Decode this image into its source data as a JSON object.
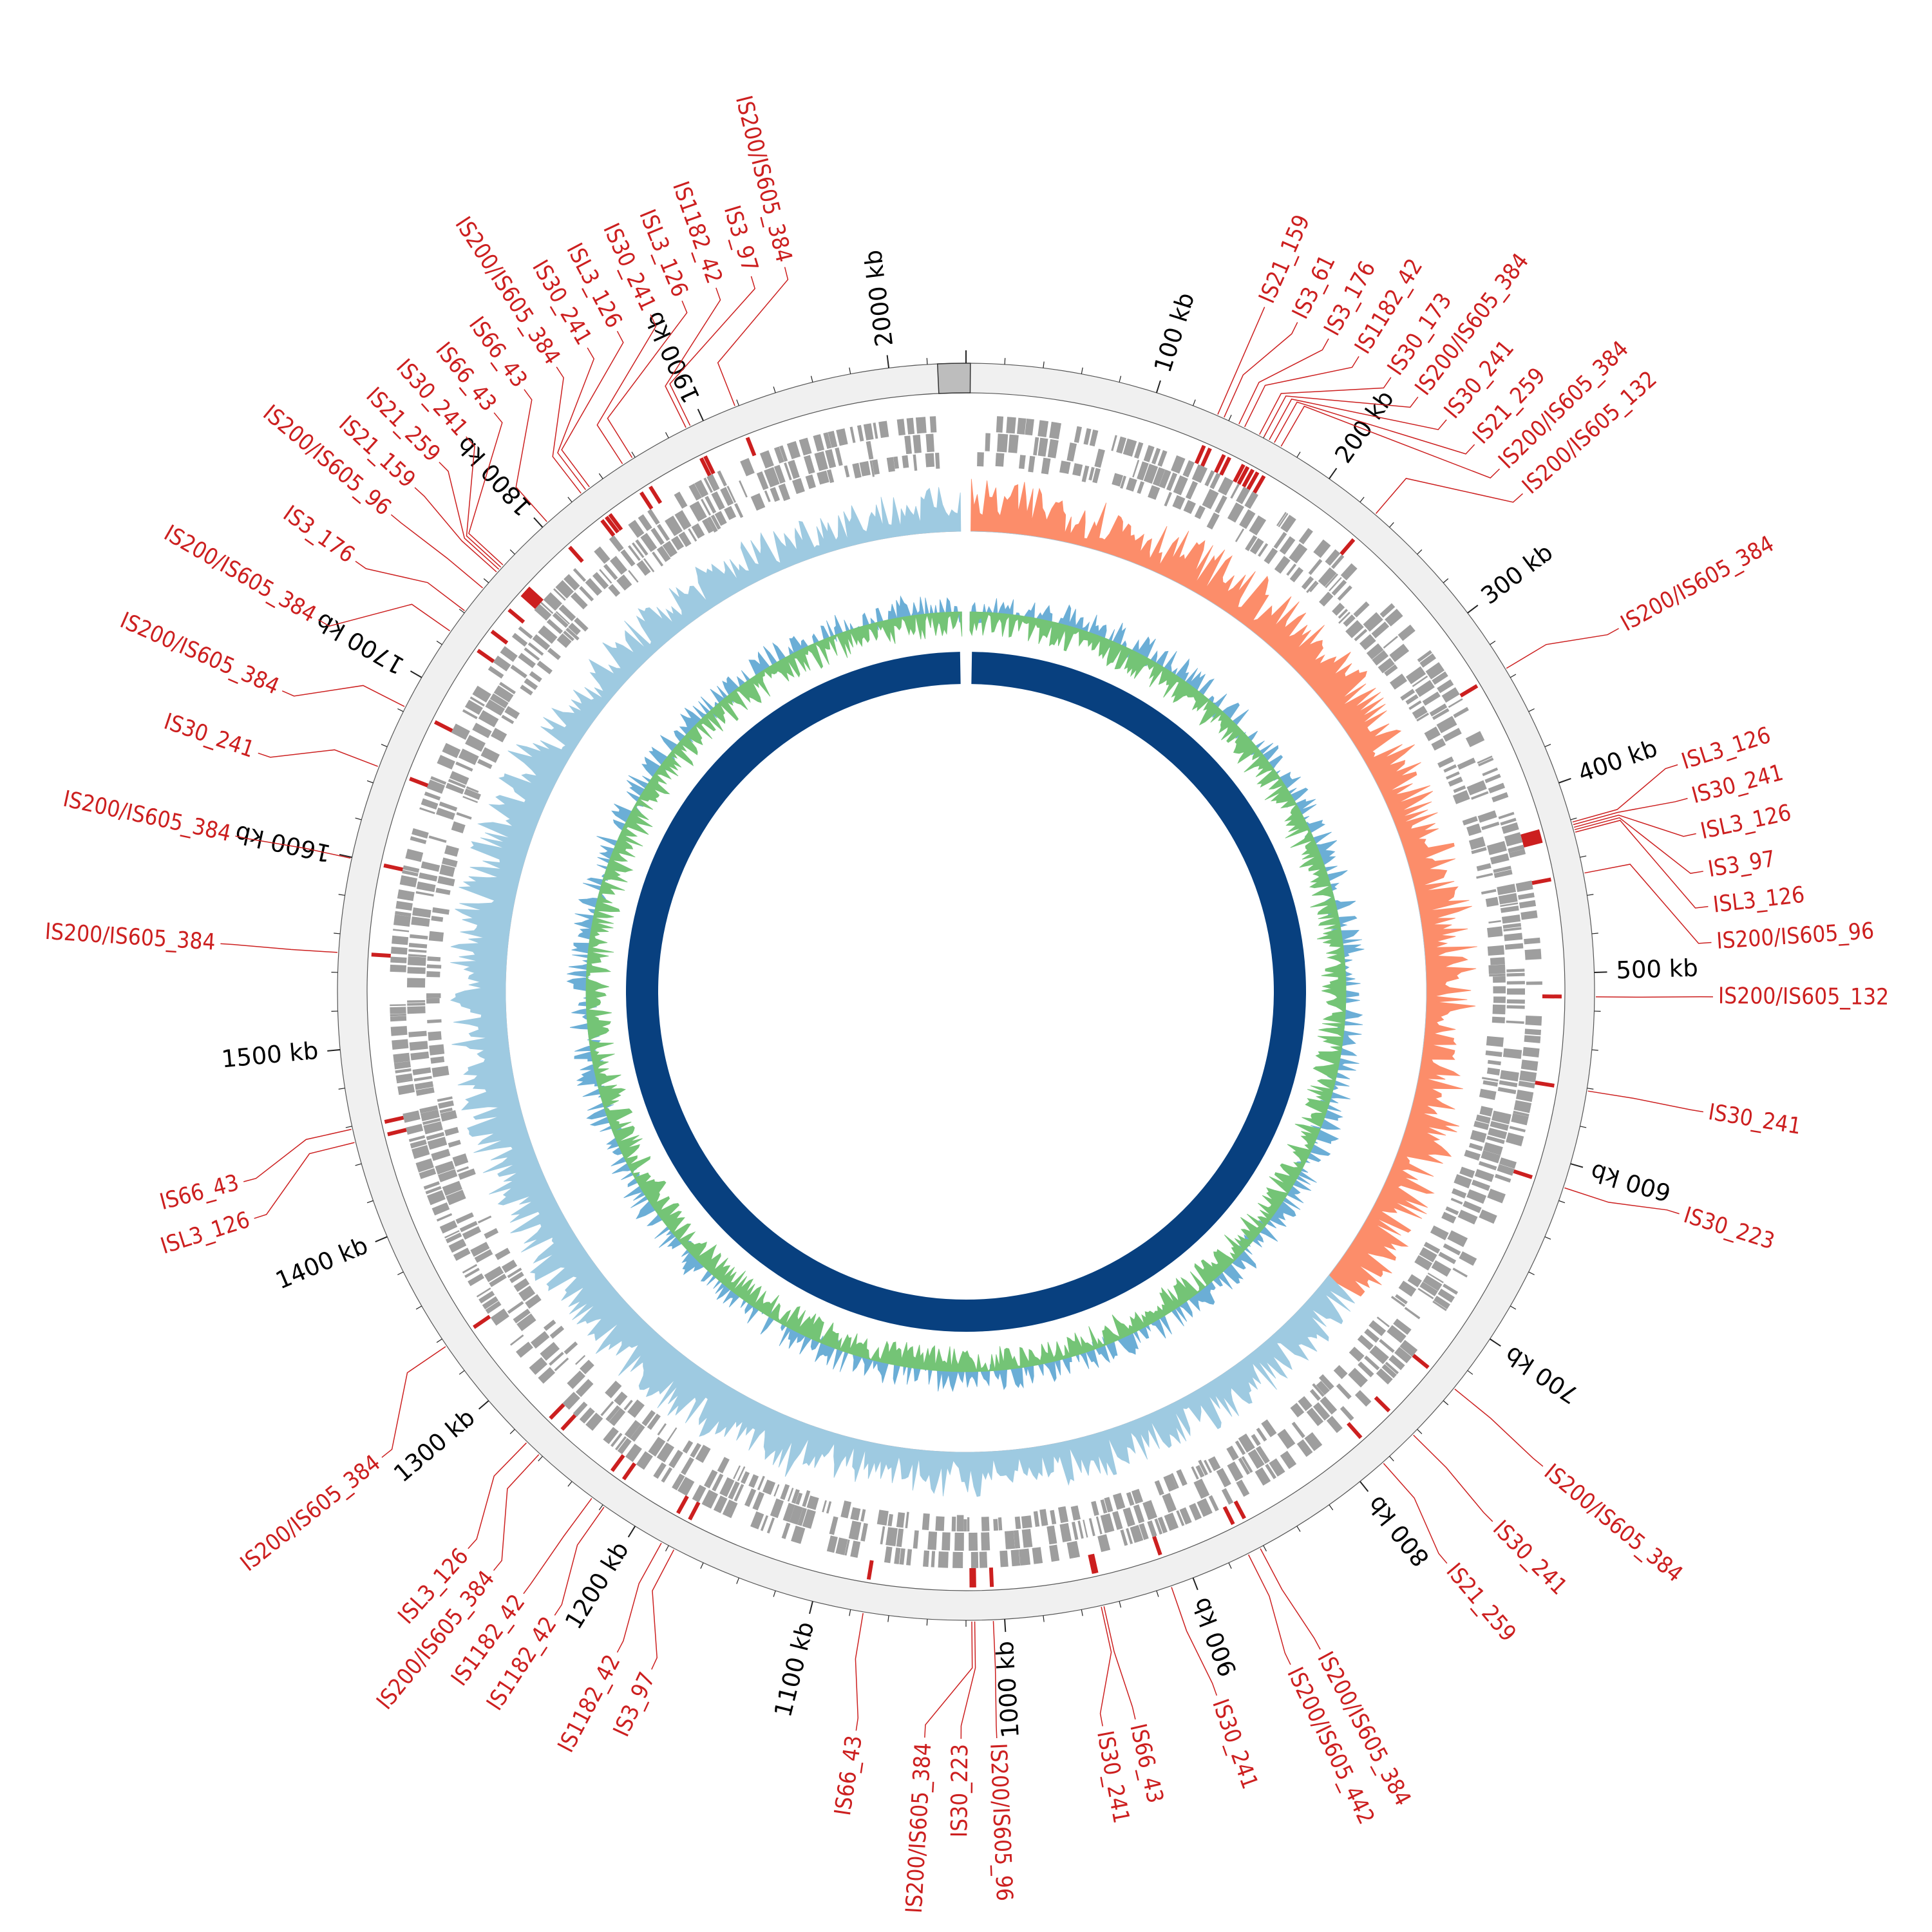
{
  "genome_size_kb": 2040,
  "tick_labels": [
    "100 kb",
    "200 kb",
    "300 kb",
    "400 kb",
    "500 kb",
    "600 kb",
    "700 kb",
    "800 kb",
    "900 kb",
    "1000 kb",
    "1100 kb",
    "1200 kb",
    "1300 kb",
    "1400 kb",
    "1500 kb",
    "1600 kb",
    "1700 kb",
    "1800 kb",
    "1900 kb",
    "2000 kb"
  ],
  "colors": {
    "label_red": "#cc1f1f",
    "outer_ring": "#f0f0f0",
    "origin_block": "#bdbdbd",
    "gene_gray": "#9e9e9e",
    "gc_skew_positive": "#fc8d6a",
    "gc_skew_negative": "#9ecae1",
    "gc_content_above": "#6baed6",
    "gc_content_below": "#74c476",
    "inner_ring": "#08407f"
  },
  "is_elements": [
    {
      "name": "IS21_159",
      "kb": 133.5
    },
    {
      "name": "IS3_61",
      "kb": 137.1
    },
    {
      "name": "IS3_176",
      "kb": 145.5
    },
    {
      "name": "IS1182_42",
      "kb": 148.8
    },
    {
      "name": "IS30_173",
      "kb": 157.4
    },
    {
      "name": "IS200/IS605_384",
      "kb": 160.0
    },
    {
      "name": "IS30_241",
      "kb": 163.1
    },
    {
      "name": "IS21_259",
      "kb": 166.1
    },
    {
      "name": "IS200/IS605_384",
      "kb": 170.1
    },
    {
      "name": "IS200/IS605_132",
      "kb": 230.1
    },
    {
      "name": "IS200/IS605_384",
      "kb": 334.9
    },
    {
      "name": "ISL3_126",
      "kb": 421.4
    },
    {
      "name": "IS30_241",
      "kb": 422.8
    },
    {
      "name": "ISL3_126",
      "kb": 424.2
    },
    {
      "name": "IS3_97",
      "kb": 425.5
    },
    {
      "name": "ISL3_126",
      "kb": 426.8
    },
    {
      "name": "IS200/IS605_96",
      "kb": 448.4
    },
    {
      "name": "IS200/IS605_132",
      "kb": 512.6
    },
    {
      "name": "IS30_241",
      "kb": 561.4
    },
    {
      "name": "IS30_223",
      "kb": 612.8
    },
    {
      "name": "IS200/IS605_384",
      "kb": 731.6
    },
    {
      "name": "IS30_241",
      "kb": 763.5
    },
    {
      "name": "IS21_259",
      "kb": 784.7
    },
    {
      "name": "IS200/IS605_384",
      "kb": 862.1
    },
    {
      "name": "IS200/IS605_442",
      "kb": 869.0
    },
    {
      "name": "IS30_241",
      "kb": 912.1
    },
    {
      "name": "IS66_43",
      "kb": 948.3
    },
    {
      "name": "IS30_241",
      "kb": 949.7
    },
    {
      "name": "IS200/IS605_96",
      "kb": 1005.9
    },
    {
      "name": "IS30_223",
      "kb": 1015.5
    },
    {
      "name": "IS200/IS605_384",
      "kb": 1017.0
    },
    {
      "name": "IS66_43",
      "kb": 1073.3
    },
    {
      "name": "IS3_97",
      "kb": 1176.6
    },
    {
      "name": "IS1182_42",
      "kb": 1183.9
    },
    {
      "name": "IS1182_42",
      "kb": 1218.8
    },
    {
      "name": "IS1182_42",
      "kb": 1226.6
    },
    {
      "name": "IS200/IS605_384",
      "kb": 1262.0
    },
    {
      "name": "ISL3_126",
      "kb": 1270.8
    },
    {
      "name": "IS200/IS605_384",
      "kb": 1335.7
    },
    {
      "name": "ISL3_126",
      "kb": 1451.5
    },
    {
      "name": "IS66_43",
      "kb": 1458.5
    },
    {
      "name": "IS200/IS605_384",
      "kb": 1550.3
    },
    {
      "name": "IS200/IS605_384",
      "kb": 1599.4
    },
    {
      "name": "IS30_241",
      "kb": 1648.8
    },
    {
      "name": "IS200/IS605_384",
      "kb": 1682.6
    },
    {
      "name": "IS200/IS605_384",
      "kb": 1728.1
    },
    {
      "name": "IS3_176",
      "kb": 1741.0
    },
    {
      "name": "IS200/IS605_96",
      "kb": 1756.0
    },
    {
      "name": "IS21_159",
      "kb": 1766.9
    },
    {
      "name": "IS21_259",
      "kb": 1768.7
    },
    {
      "name": "IS30_241",
      "kb": 1770.2
    },
    {
      "name": "IS66_43",
      "kb": 1771.8
    },
    {
      "name": "IS66_43",
      "kb": 1803.6
    },
    {
      "name": "IS200/IS605_384",
      "kb": 1826.5
    },
    {
      "name": "IS30_241",
      "kb": 1829.5
    },
    {
      "name": "ISL3_126",
      "kb": 1831.9
    },
    {
      "name": "IS30_241",
      "kb": 1852.7
    },
    {
      "name": "ISL3_126",
      "kb": 1858.6
    },
    {
      "name": "IS1182_42",
      "kb": 1890.4
    },
    {
      "name": "IS3_97",
      "kb": 1892.8
    },
    {
      "name": "IS200/IS605_384",
      "kb": 1918.0
    }
  ],
  "callout_labels": [
    {
      "text": "IS21_159",
      "angle": 23.56,
      "anchor": "start"
    },
    {
      "text": "IS3_61",
      "angle": 26.34,
      "anchor": "start"
    },
    {
      "text": "IS3_176",
      "angle": 29.04,
      "anchor": "start"
    },
    {
      "text": "IS1182_42",
      "angle": 31.73,
      "anchor": "start"
    },
    {
      "text": "IS30_173",
      "angle": 34.67,
      "anchor": "start"
    },
    {
      "text": "IS200/IS605_384",
      "angle": 37.23,
      "anchor": "start"
    },
    {
      "text": "IS30_241",
      "angle": 40.03,
      "anchor": "start"
    },
    {
      "text": "IS21_259",
      "angle": 42.9,
      "anchor": "start"
    },
    {
      "text": "IS200/IS605_384",
      "angle": 45.58,
      "anchor": "start"
    },
    {
      "text": "IS200/IS605_132",
      "angle": 48.18,
      "anchor": "start"
    },
    {
      "text": "IS200/IS605_384",
      "angle": 60.9,
      "anchor": "start"
    },
    {
      "text": "ISL3_126",
      "angle": 72.31,
      "anchor": "start"
    },
    {
      "text": "IS30_241",
      "angle": 75.0,
      "anchor": "start"
    },
    {
      "text": "ISL3_126",
      "angle": 77.78,
      "anchor": "start"
    },
    {
      "text": "IS3_97",
      "angle": 80.72,
      "anchor": "start"
    },
    {
      "text": "ISL3_126",
      "angle": 83.45,
      "anchor": "start"
    },
    {
      "text": "IS200/IS605_96",
      "angle": 86.22,
      "anchor": "start"
    },
    {
      "text": "IS200/IS605_132",
      "angle": 90.39,
      "anchor": "start"
    },
    {
      "text": "IS30_241",
      "angle": 99.25,
      "anchor": "start"
    },
    {
      "text": "IS30_223",
      "angle": 107.29,
      "anchor": "start"
    },
    {
      "text": "IS200/IS605_384",
      "angle": 129.44,
      "anchor": "start"
    },
    {
      "text": "IS30_241",
      "angle": 135.17,
      "anchor": "start"
    },
    {
      "text": "IS21_259",
      "angle": 139.92,
      "anchor": "start"
    },
    {
      "text": "IS200/IS605_384",
      "angle": 151.69,
      "anchor": "start"
    },
    {
      "text": "IS200/IS605_442",
      "angle": 154.25,
      "anchor": "start"
    },
    {
      "text": "IS30_241",
      "angle": 160.39,
      "anchor": "start"
    },
    {
      "text": "IS66_43",
      "angle": 166.9,
      "anchor": "start"
    },
    {
      "text": "IS30_241",
      "angle": 169.46,
      "anchor": "start"
    },
    {
      "text": "IS200/IS605_96",
      "angle": 177.64,
      "anchor": "start"
    },
    {
      "text": "IS30_223",
      "angle": 180.38,
      "anchor": "end"
    },
    {
      "text": "IS200/IS605_384",
      "angle": 183.17,
      "anchor": "end"
    },
    {
      "text": "IS66_43",
      "angle": 188.46,
      "anchor": "end"
    },
    {
      "text": "IS3_97",
      "angle": 204.89,
      "anchor": "end"
    },
    {
      "text": "IS1182_42",
      "angle": 207.83,
      "anchor": "end"
    },
    {
      "text": "IS1182_42",
      "angle": 213.41,
      "anchor": "end"
    },
    {
      "text": "IS1182_42",
      "angle": 216.32,
      "anchor": "end"
    },
    {
      "text": "IS200/IS605_384",
      "angle": 219.22,
      "anchor": "end"
    },
    {
      "text": "ISL3_126",
      "angle": 221.8,
      "anchor": "end"
    },
    {
      "text": "IS200/IS605_384",
      "angle": 231.44,
      "anchor": "end"
    },
    {
      "text": "ISL3_126",
      "angle": 252.34,
      "anchor": "end"
    },
    {
      "text": "IS66_43",
      "angle": 255.27,
      "anchor": "end"
    },
    {
      "text": "IS200/IS605_384",
      "angle": 273.69,
      "anchor": "end"
    },
    {
      "text": "IS200/IS605_384",
      "angle": 282.03,
      "anchor": "end"
    },
    {
      "text": "IS30_241",
      "angle": 288.63,
      "anchor": "end"
    },
    {
      "text": "IS200/IS605_384",
      "angle": 293.75,
      "anchor": "end"
    },
    {
      "text": "IS200/IS605_384",
      "angle": 299.87,
      "anchor": "end"
    },
    {
      "text": "IS3_176",
      "angle": 305.19,
      "anchor": "end"
    },
    {
      "text": "IS200/IS605_96",
      "angle": 309.69,
      "anchor": "end"
    },
    {
      "text": "IS21_159",
      "angle": 312.45,
      "anchor": "end"
    },
    {
      "text": "IS21_259",
      "angle": 315.15,
      "anchor": "end"
    },
    {
      "text": "IS30_241",
      "angle": 317.99,
      "anchor": "end"
    },
    {
      "text": "IS66_43",
      "angle": 320.82,
      "anchor": "end"
    },
    {
      "text": "IS66_43",
      "angle": 323.74,
      "anchor": "end"
    },
    {
      "text": "IS200/IS605_384",
      "angle": 326.76,
      "anchor": "end"
    },
    {
      "text": "IS30_241",
      "angle": 329.55,
      "anchor": "end"
    },
    {
      "text": "ISL3_126",
      "angle": 332.17,
      "anchor": "end"
    },
    {
      "text": "IS30_241",
      "angle": 335.02,
      "anchor": "end"
    },
    {
      "text": "ISL3_126",
      "angle": 337.66,
      "anchor": "end"
    },
    {
      "text": "IS1182_42",
      "angle": 340.45,
      "anchor": "end"
    },
    {
      "text": "IS3_97",
      "angle": 343.29,
      "anchor": "end"
    },
    {
      "text": "IS200/IS605_384",
      "angle": 345.96,
      "anchor": "end"
    }
  ]
}
